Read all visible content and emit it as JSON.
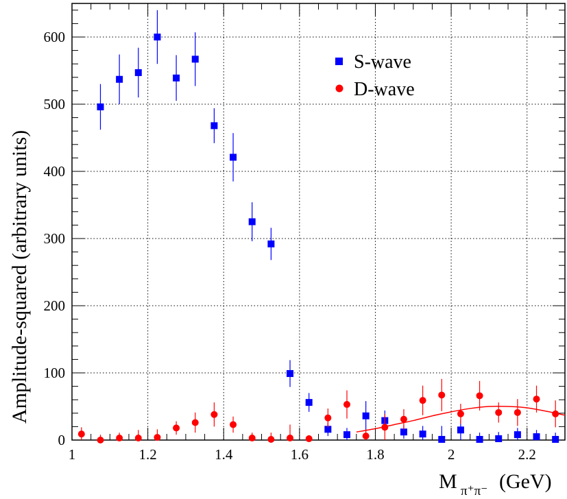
{
  "chart_data": {
    "type": "scatter",
    "title": "",
    "xlabel": "M",
    "xlabel_subscript": "π⁺π⁻",
    "xlabel_unit": "(GeV)",
    "ylabel": "Amplitude-squared (arbitrary units)",
    "xlim": [
      1.0,
      2.3
    ],
    "ylim": [
      0,
      650
    ],
    "x_ticks": [
      1,
      1.2,
      1.4,
      1.6,
      1.8,
      2,
      2.2
    ],
    "x_tick_labels": [
      "1",
      "1.2",
      "1.4",
      "1.6",
      "1.8",
      "2",
      "2.2"
    ],
    "y_ticks": [
      0,
      100,
      200,
      300,
      400,
      500,
      600
    ],
    "y_tick_labels": [
      "0",
      "100",
      "200",
      "300",
      "400",
      "500",
      "600"
    ],
    "grid": true,
    "legend_position": "top-right",
    "series": [
      {
        "name": "S-wave",
        "marker": "square",
        "color": "#0000ff",
        "x": [
          1.075,
          1.125,
          1.175,
          1.225,
          1.275,
          1.325,
          1.375,
          1.425,
          1.475,
          1.525,
          1.575,
          1.625,
          1.675,
          1.725,
          1.775,
          1.825,
          1.875,
          1.925,
          1.975,
          2.025,
          2.075,
          2.125,
          2.175,
          2.225,
          2.275
        ],
        "y": [
          496,
          537,
          547,
          600,
          539,
          567,
          468,
          421,
          325,
          292,
          99,
          56,
          16,
          8,
          36,
          29,
          12,
          9,
          1,
          15,
          1,
          2,
          8,
          5,
          1
        ],
        "err": [
          34,
          37,
          37,
          40,
          34,
          40,
          26,
          36,
          29,
          24,
          20,
          14,
          10,
          10,
          22,
          15,
          10,
          12,
          20,
          15,
          10,
          10,
          10,
          10,
          10
        ]
      },
      {
        "name": "D-wave",
        "marker": "circle",
        "color": "#ff0000",
        "x": [
          1.025,
          1.075,
          1.125,
          1.175,
          1.225,
          1.275,
          1.325,
          1.375,
          1.425,
          1.475,
          1.525,
          1.575,
          1.625,
          1.675,
          1.725,
          1.775,
          1.825,
          1.875,
          1.925,
          1.975,
          2.025,
          2.075,
          2.125,
          2.175,
          2.225,
          2.275
        ],
        "y": [
          9,
          0,
          3,
          3,
          4,
          18,
          26,
          38,
          23,
          3,
          1,
          3,
          2,
          33,
          53,
          6,
          19,
          31,
          59,
          67,
          39,
          66,
          41,
          41,
          61,
          39
        ],
        "err": [
          10,
          8,
          8,
          12,
          12,
          10,
          15,
          18,
          12,
          8,
          10,
          20,
          5,
          14,
          21,
          10,
          20,
          15,
          22,
          24,
          15,
          22,
          15,
          20,
          20,
          20
        ]
      }
    ],
    "fit_curve": {
      "color": "#ff0000",
      "x": [
        1.75,
        1.8,
        1.85,
        1.9,
        1.95,
        2.0,
        2.05,
        2.1,
        2.15,
        2.2,
        2.25,
        2.3
      ],
      "y": [
        12,
        17,
        23,
        29,
        36,
        42,
        47,
        50,
        50,
        48,
        43,
        37
      ]
    }
  }
}
